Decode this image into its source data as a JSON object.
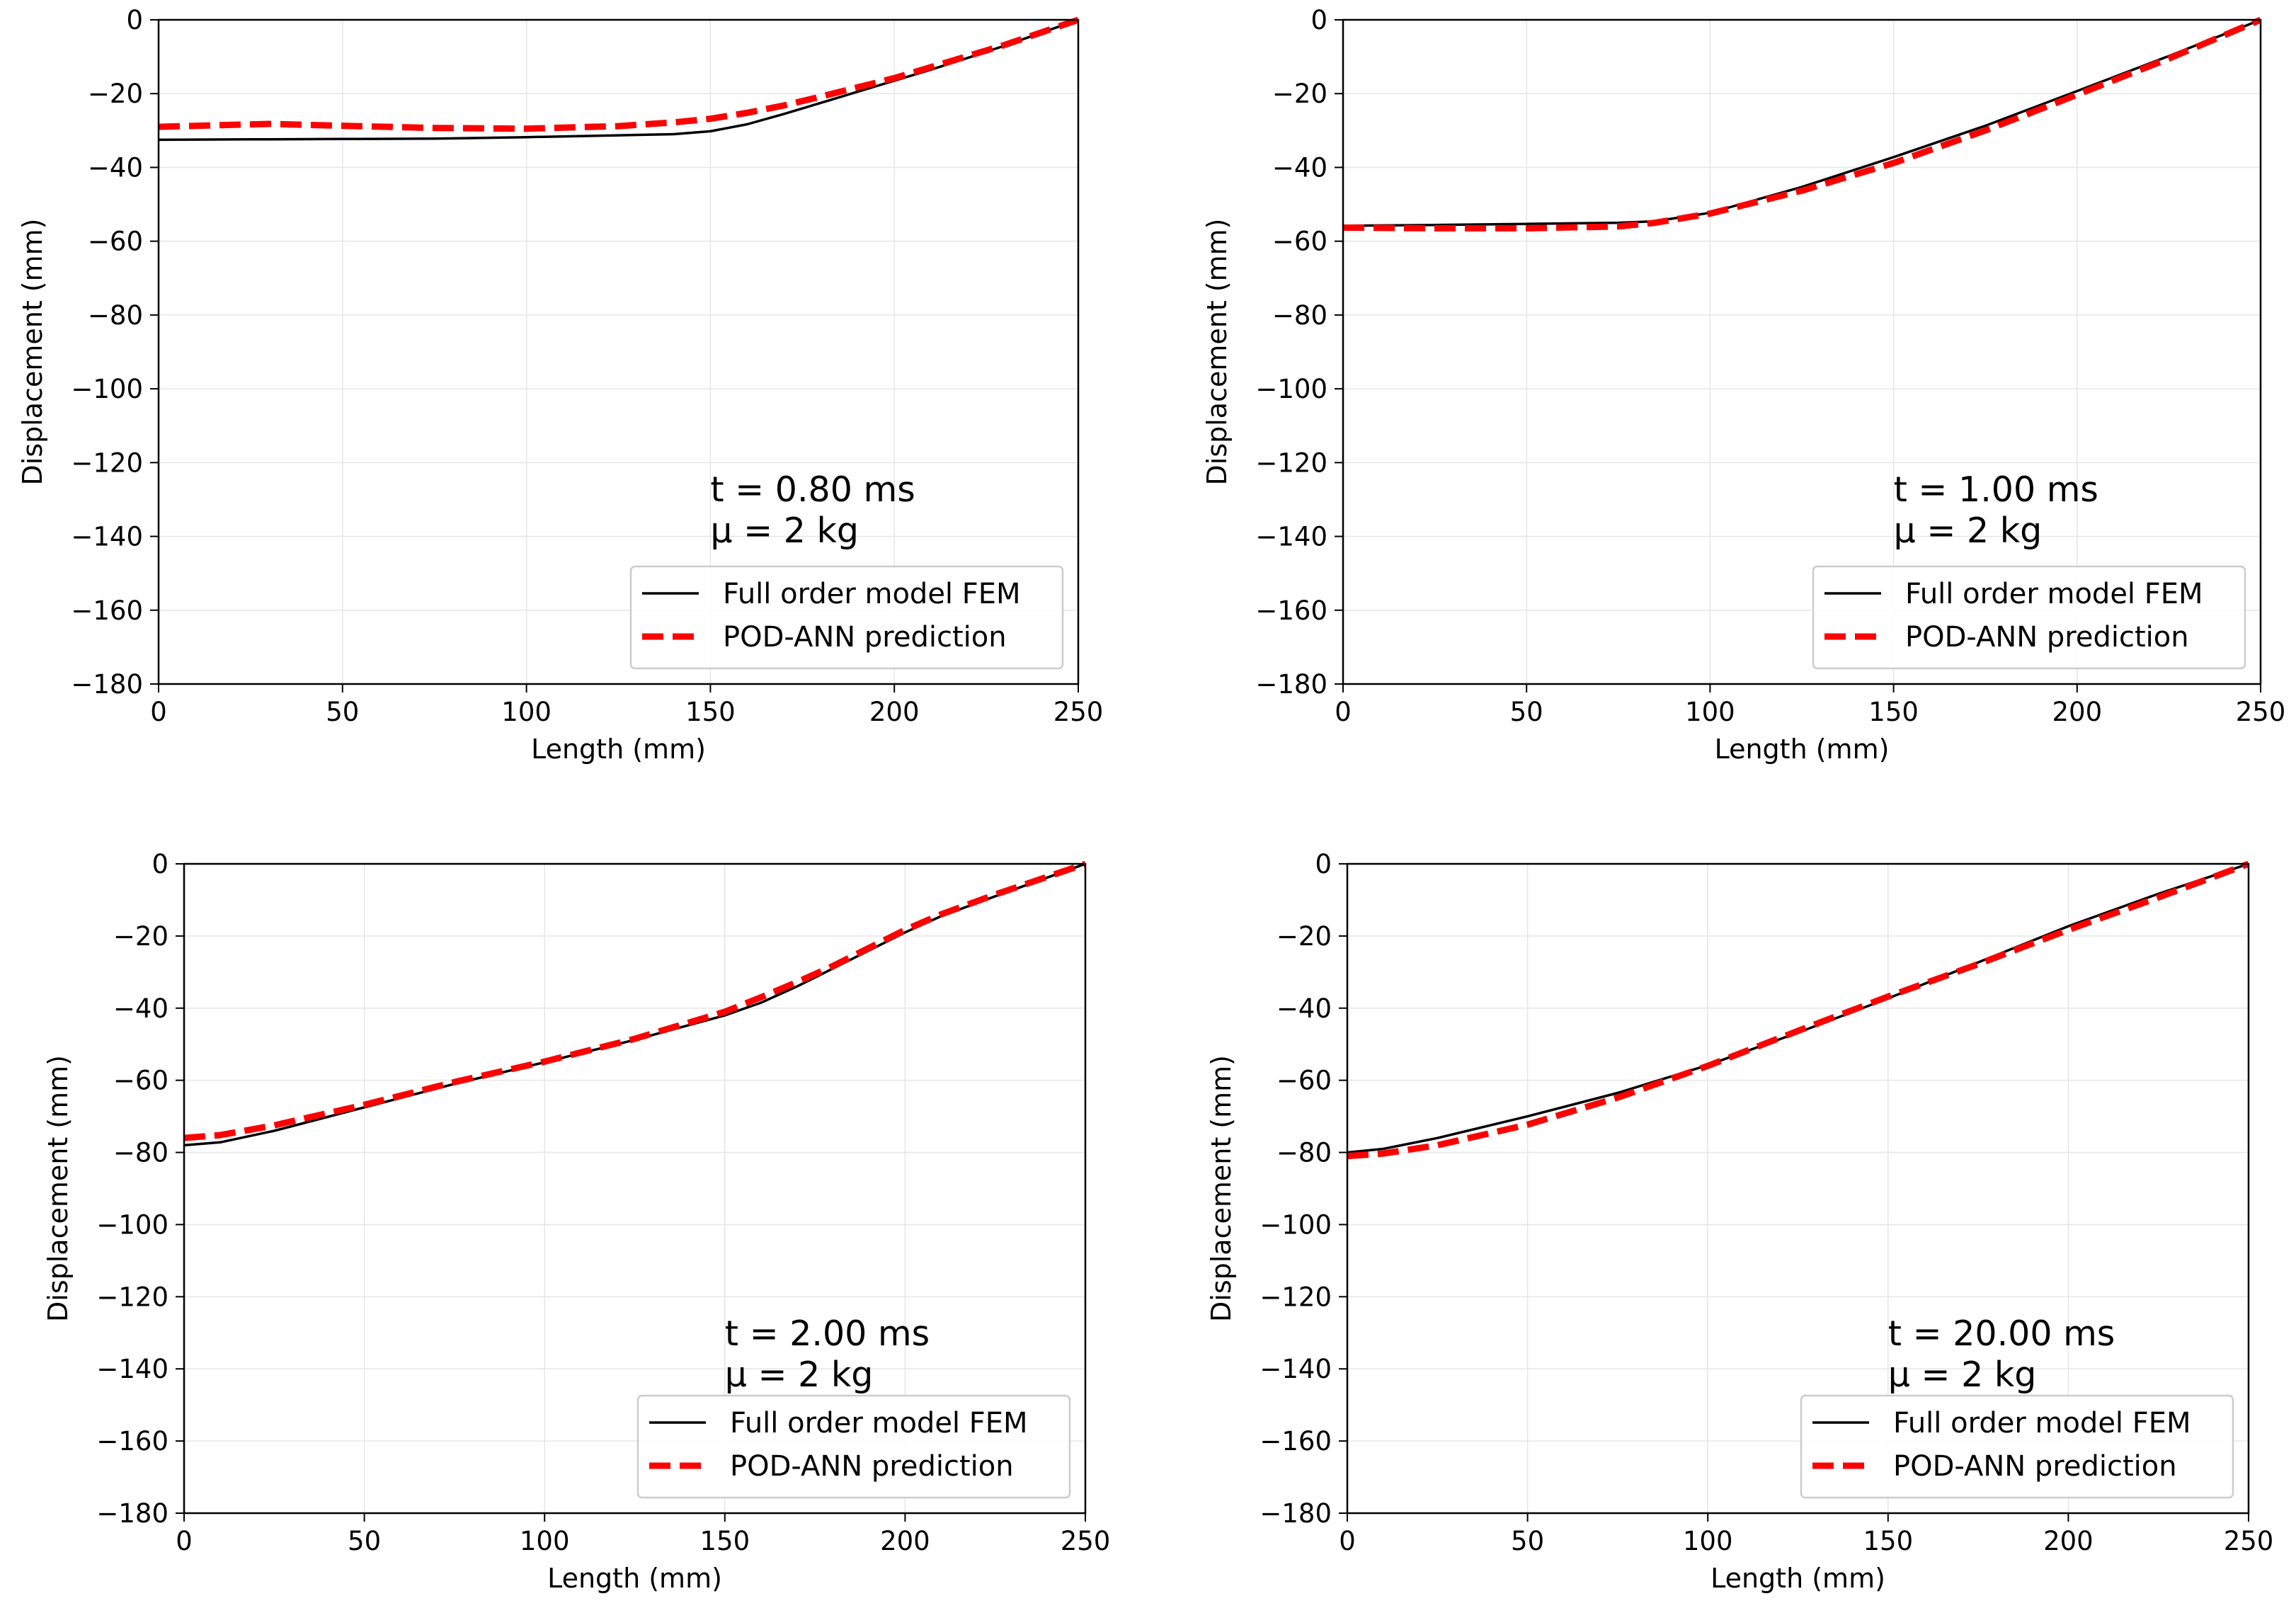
{
  "chart_data": [
    {
      "type": "line",
      "title": "",
      "xlabel": "Length (mm)",
      "ylabel": "Displacement (mm)",
      "xlim": [
        0,
        250
      ],
      "ylim": [
        -180,
        0
      ],
      "xticks": [
        "0",
        "50",
        "100",
        "150",
        "200",
        "250"
      ],
      "yticks": [
        "0",
        "−20",
        "−40",
        "−60",
        "−80",
        "−100",
        "−120",
        "−140",
        "−160",
        "−180"
      ],
      "grid": true,
      "legend_position": "lower-right",
      "annotation": [
        "t = 0.80 ms",
        "μ = 2 kg"
      ],
      "series": [
        {
          "name": "Full order model FEM",
          "color": "#000000",
          "style": "solid",
          "x": [
            0,
            25,
            50,
            75,
            100,
            125,
            140,
            150,
            160,
            170,
            180,
            190,
            200,
            210,
            220,
            230,
            240,
            250
          ],
          "y": [
            -32.5,
            -32.4,
            -32.3,
            -32.2,
            -31.8,
            -31.3,
            -31.0,
            -30.2,
            -28.3,
            -25.5,
            -22.5,
            -19.5,
            -16.5,
            -13.5,
            -10.3,
            -7.0,
            -3.5,
            0
          ]
        },
        {
          "name": "POD-ANN prediction",
          "color": "#ff0000",
          "style": "dashed",
          "x": [
            0,
            15,
            30,
            50,
            75,
            100,
            125,
            140,
            150,
            160,
            170,
            180,
            190,
            200,
            210,
            220,
            230,
            240,
            250
          ],
          "y": [
            -29.0,
            -28.6,
            -28.2,
            -28.7,
            -29.3,
            -29.5,
            -28.8,
            -27.8,
            -26.8,
            -25.2,
            -23.2,
            -20.8,
            -18.3,
            -15.8,
            -12.8,
            -9.8,
            -6.8,
            -3.4,
            0
          ]
        }
      ]
    },
    {
      "type": "line",
      "title": "",
      "xlabel": "Length (mm)",
      "ylabel": "Displacement (mm)",
      "xlim": [
        0,
        250
      ],
      "ylim": [
        -180,
        0
      ],
      "xticks": [
        "0",
        "50",
        "100",
        "150",
        "200",
        "250"
      ],
      "yticks": [
        "0",
        "−20",
        "−40",
        "−60",
        "−80",
        "−100",
        "−120",
        "−140",
        "−160",
        "−180"
      ],
      "grid": true,
      "legend_position": "lower-right",
      "annotation": [
        "t = 1.00 ms",
        "μ = 2 kg"
      ],
      "series": [
        {
          "name": "Full order model FEM",
          "color": "#000000",
          "style": "solid",
          "x": [
            0,
            25,
            50,
            75,
            85,
            100,
            125,
            150,
            175,
            200,
            225,
            250
          ],
          "y": [
            -55.8,
            -55.6,
            -55.3,
            -55.0,
            -54.6,
            -52.3,
            -45.3,
            -37.2,
            -28.7,
            -19.3,
            -9.8,
            0
          ]
        },
        {
          "name": "POD-ANN prediction",
          "color": "#ff0000",
          "style": "dashed",
          "x": [
            0,
            25,
            50,
            75,
            85,
            100,
            125,
            150,
            175,
            200,
            225,
            250
          ],
          "y": [
            -56.3,
            -56.5,
            -56.5,
            -56.0,
            -55.0,
            -52.5,
            -46.3,
            -38.8,
            -30.0,
            -20.3,
            -10.5,
            0
          ]
        }
      ]
    },
    {
      "type": "line",
      "title": "",
      "xlabel": "Length (mm)",
      "ylabel": "Displacement (mm)",
      "xlim": [
        0,
        250
      ],
      "ylim": [
        -180,
        0
      ],
      "xticks": [
        "0",
        "50",
        "100",
        "150",
        "200",
        "250"
      ],
      "yticks": [
        "0",
        "−20",
        "−40",
        "−60",
        "−80",
        "−100",
        "−120",
        "−140",
        "−160",
        "−180"
      ],
      "grid": true,
      "legend_position": "lower-right",
      "annotation": [
        "t = 2.00 ms",
        "μ = 2 kg"
      ],
      "series": [
        {
          "name": "Full order model FEM",
          "color": "#000000",
          "style": "solid",
          "x": [
            0,
            10,
            25,
            50,
            75,
            100,
            125,
            150,
            160,
            170,
            180,
            190,
            200,
            210,
            225,
            250
          ],
          "y": [
            -78.0,
            -77.2,
            -74.0,
            -67.5,
            -61.0,
            -55.0,
            -48.8,
            -42.0,
            -38.5,
            -34.0,
            -29.0,
            -24.0,
            -19.0,
            -14.5,
            -9.0,
            0
          ]
        },
        {
          "name": "POD-ANN prediction",
          "color": "#ff0000",
          "style": "dashed",
          "x": [
            0,
            10,
            25,
            50,
            75,
            100,
            125,
            150,
            160,
            170,
            180,
            190,
            200,
            210,
            225,
            250
          ],
          "y": [
            -76.0,
            -75.2,
            -72.5,
            -66.8,
            -60.5,
            -54.8,
            -48.5,
            -41.0,
            -37.0,
            -32.8,
            -28.3,
            -23.3,
            -18.3,
            -14.0,
            -8.5,
            0
          ]
        }
      ]
    },
    {
      "type": "line",
      "title": "",
      "xlabel": "Length (mm)",
      "ylabel": "Displacement (mm)",
      "xlim": [
        0,
        250
      ],
      "ylim": [
        -180,
        0
      ],
      "xticks": [
        "0",
        "50",
        "100",
        "150",
        "200",
        "250"
      ],
      "yticks": [
        "0",
        "−20",
        "−40",
        "−60",
        "−80",
        "−100",
        "−120",
        "−140",
        "−160",
        "−180"
      ],
      "grid": true,
      "legend_position": "lower-right",
      "annotation": [
        "t = 20.00 ms",
        "μ = 2 kg"
      ],
      "series": [
        {
          "name": "Full order model FEM",
          "color": "#000000",
          "style": "solid",
          "x": [
            0,
            10,
            25,
            50,
            75,
            100,
            125,
            150,
            175,
            200,
            225,
            250
          ],
          "y": [
            -80.0,
            -79.0,
            -76.0,
            -70.0,
            -63.5,
            -55.8,
            -46.8,
            -37.3,
            -27.3,
            -17.3,
            -8.3,
            0
          ]
        },
        {
          "name": "POD-ANN prediction",
          "color": "#ff0000",
          "style": "dashed",
          "x": [
            0,
            10,
            25,
            50,
            75,
            100,
            125,
            150,
            175,
            200,
            225,
            250
          ],
          "y": [
            -81.0,
            -80.3,
            -78.0,
            -72.3,
            -64.8,
            -56.0,
            -46.3,
            -36.8,
            -27.8,
            -18.3,
            -9.3,
            0
          ]
        }
      ]
    }
  ]
}
